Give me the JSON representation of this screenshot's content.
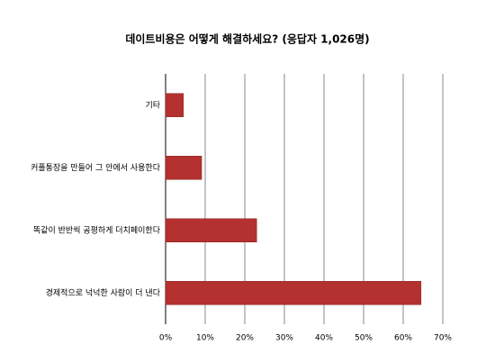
{
  "chart_data": {
    "type": "barh",
    "title": "데이트비용은 어떻게 해결하세요? (응답자 1,026명)",
    "categories": [
      "기타",
      "커플통장을 만들어 그 안에서 사용한다",
      "똑같이 반반씩 공평하게 더치페이한다",
      "경제적으로 넉넉한 사람이 더 낸다"
    ],
    "values": [
      4.5,
      9.1,
      23,
      64.5
    ],
    "color": "#b3312f",
    "xlim": [
      0,
      70
    ],
    "xticks": [
      {
        "value": 0,
        "label": "0%"
      },
      {
        "value": 10,
        "label": "10%"
      },
      {
        "value": 20,
        "label": "20%"
      },
      {
        "value": 30,
        "label": "30%"
      },
      {
        "value": 40,
        "label": "40%"
      },
      {
        "value": 50,
        "label": "50%"
      },
      {
        "value": 60,
        "label": "60%"
      },
      {
        "value": 70,
        "label": "70%"
      }
    ],
    "grid": true
  }
}
